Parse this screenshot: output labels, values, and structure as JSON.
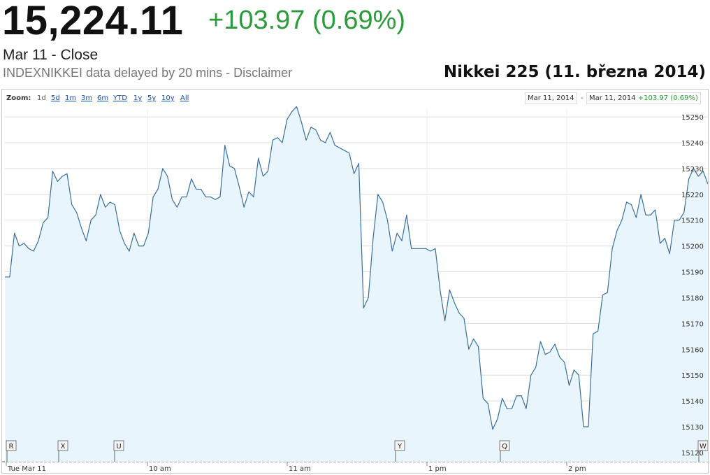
{
  "quote": {
    "price": "15,224.11",
    "change": "+103.97 (0.69%)",
    "close_label": "Mar 11 - Close",
    "delay_text": "INDEXNIKKEI data delayed by 20 mins - ",
    "disclaimer": "Disclaimer"
  },
  "overlay_title": "Nikkei 225 (11. března 2014)",
  "zoom": {
    "label": "Zoom:",
    "options": [
      "1d",
      "5d",
      "1m",
      "3m",
      "6m",
      "YTD",
      "1y",
      "5y",
      "10y",
      "All"
    ]
  },
  "range": {
    "start": "Mar 11, 2014",
    "separator": "-",
    "end": "Mar 11, 2014",
    "change": "+103.97 (0.69%)"
  },
  "colors": {
    "line": "#3a6f9a",
    "fill": "#e8f5fc",
    "grid": "#dcdcdc",
    "positive": "#2d9b3b"
  },
  "chart_data": {
    "type": "area",
    "title": "",
    "xlabel": "",
    "ylabel": "",
    "ylim": [
      15117,
      15253
    ],
    "x_ticks": [
      "Tue Mar 11",
      "10 am",
      "11 am",
      "1 pm",
      "2 pm"
    ],
    "y_ticks": [
      15120,
      15130,
      15140,
      15150,
      15160,
      15170,
      15180,
      15190,
      15200,
      15210,
      15220,
      15230,
      15240,
      15250
    ],
    "grid": true,
    "event_markers": [
      "R",
      "X",
      "U",
      "Y",
      "Q",
      "W"
    ],
    "series": [
      {
        "values": [
          15188,
          15188,
          15205,
          15200,
          15201,
          15199,
          15198,
          15202,
          15209,
          15211,
          15229,
          15225,
          15227,
          15228,
          15216,
          15213,
          15207,
          15202,
          15210,
          15212,
          15220,
          15215,
          15217,
          15216,
          15206,
          15201,
          15198,
          15205,
          15200,
          15200,
          15205,
          15219,
          15222,
          15230,
          15227,
          15218,
          15215,
          15219,
          15219,
          15226,
          15222,
          15222,
          15219,
          15219,
          15218,
          15219,
          15239,
          15231,
          15230,
          15223,
          15215,
          15221,
          15219,
          15234,
          15227,
          15229,
          15241,
          15242,
          15240,
          15249,
          15252,
          15254,
          15248,
          15241,
          15246,
          15245,
          15241,
          15240,
          15244,
          15239,
          15238,
          15237,
          15236,
          15228,
          15232,
          15176,
          15180,
          15203,
          15220,
          15217,
          15210,
          15198,
          15205,
          15202,
          15212,
          15199,
          15199,
          15199,
          15199,
          15198,
          15199,
          15183,
          15171,
          15183,
          15178,
          15174,
          15172,
          15160,
          15164,
          15161,
          15141,
          15139,
          15129,
          15133,
          15141,
          15137,
          15137,
          15142,
          15142,
          15137,
          15150,
          15153,
          15163,
          15158,
          15159,
          15162,
          15157,
          15155,
          15146,
          15152,
          15150,
          15130,
          15130,
          15166,
          15167,
          15181,
          15182,
          15199,
          15206,
          15210,
          15217,
          15216,
          15211,
          15220,
          15212,
          15212,
          15214,
          15201,
          15203,
          15197,
          15210,
          15210,
          15213,
          15226,
          15230,
          15227,
          15229,
          15224
        ]
      }
    ]
  }
}
